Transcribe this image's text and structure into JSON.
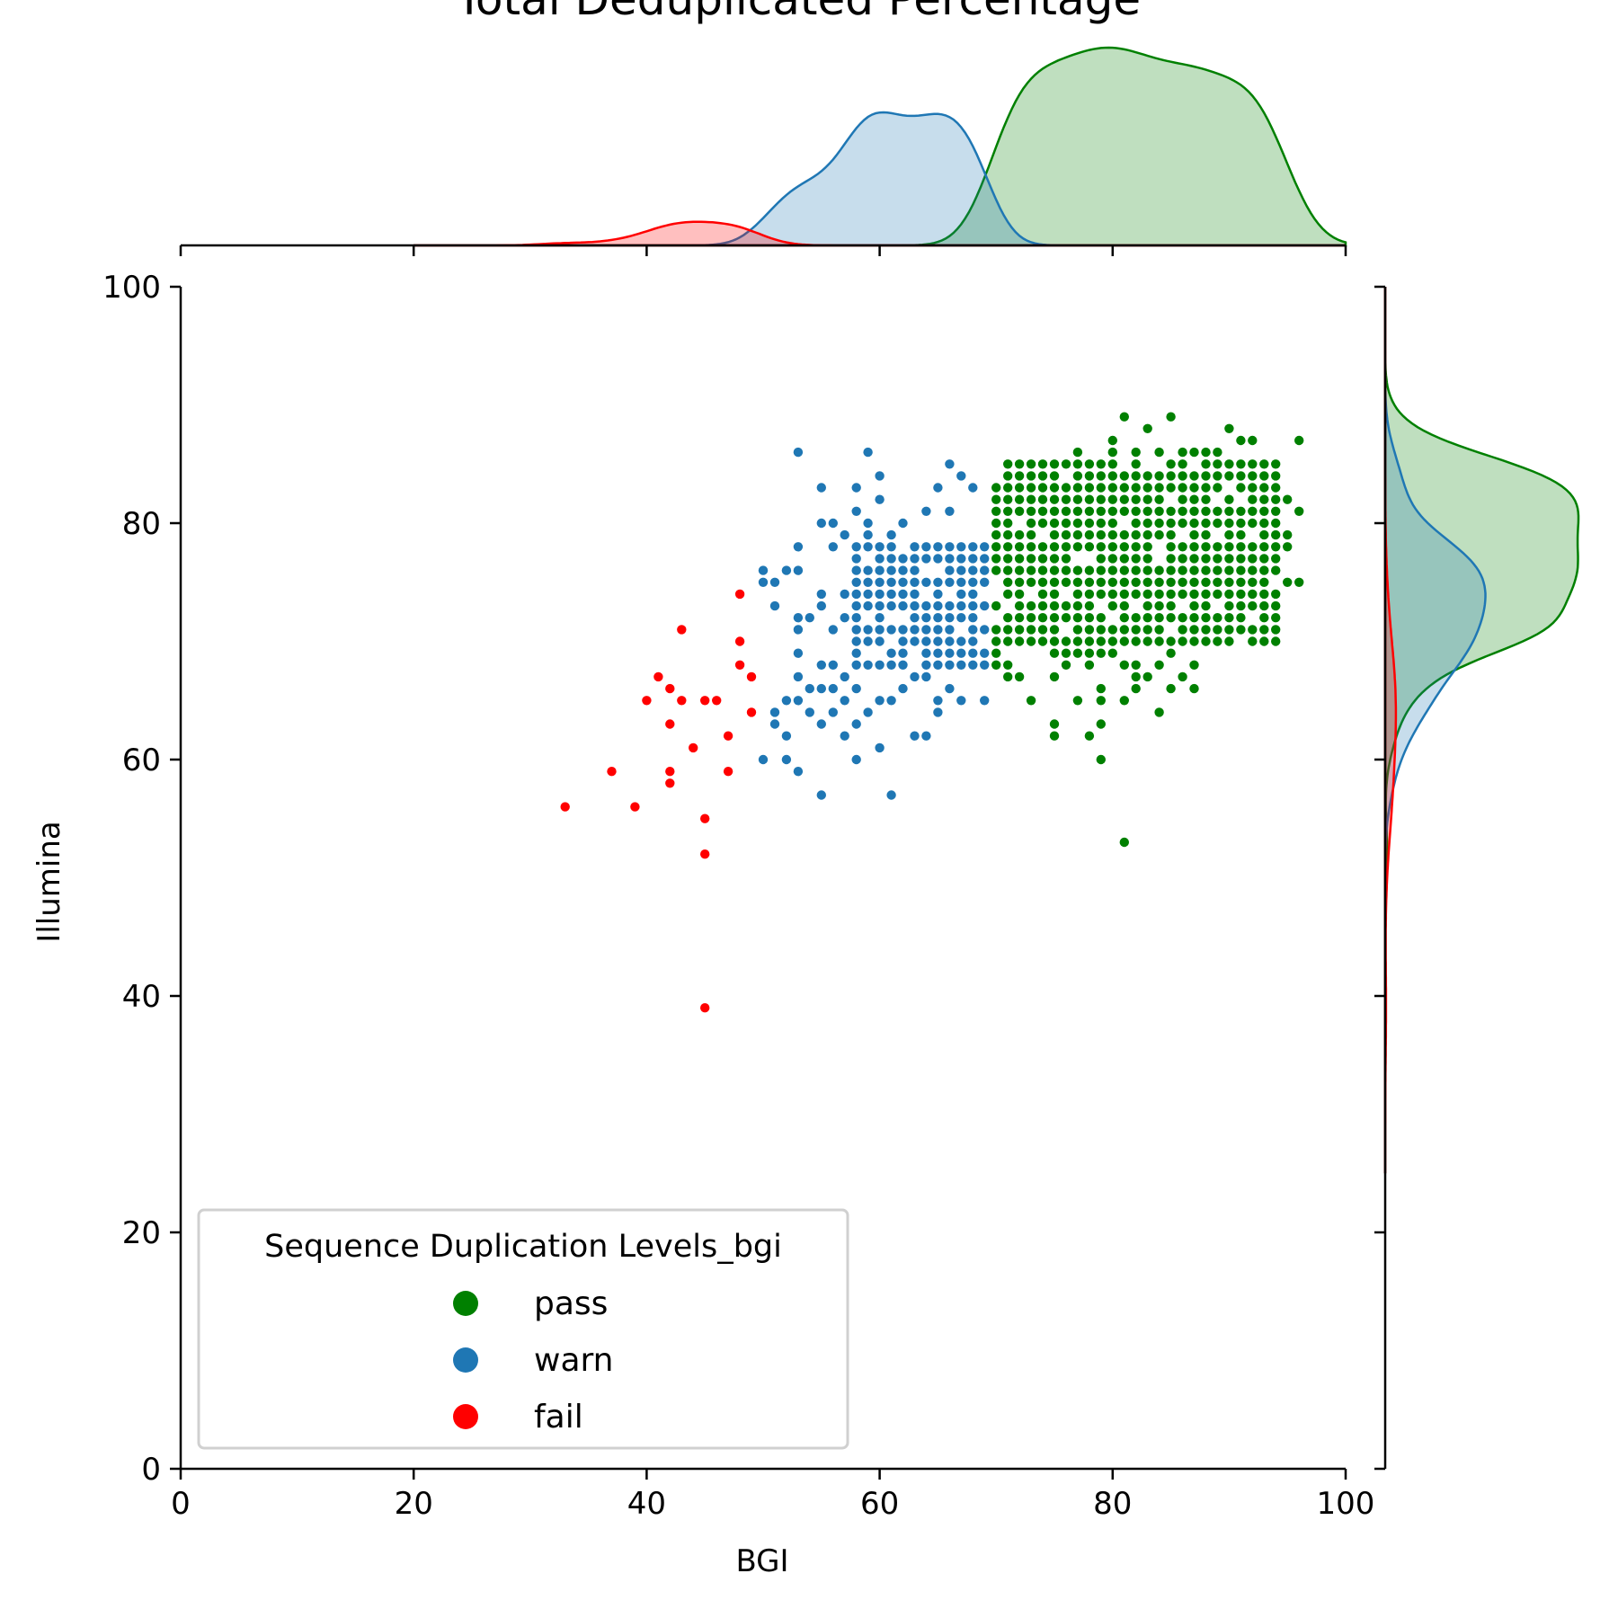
{
  "chart_data": {
    "type": "scatter",
    "title": "Total Deduplicated Percentage",
    "xlabel": "BGI",
    "ylabel": "Illumina",
    "xlim": [
      0,
      100
    ],
    "ylim": [
      0,
      100
    ],
    "xticks": [
      0,
      20,
      40,
      60,
      80,
      100
    ],
    "yticks": [
      0,
      20,
      40,
      60,
      80,
      100
    ],
    "grid": false,
    "legend": {
      "title": "Sequence Duplication Levels_bgi",
      "placement": "lower-left",
      "entries": [
        "pass",
        "warn",
        "fail"
      ]
    },
    "marginals": "kde",
    "series": [
      {
        "name": "pass",
        "color": "#008000",
        "points": [
          [
            81,
            89
          ],
          [
            85,
            89
          ],
          [
            83,
            88
          ],
          [
            90,
            88
          ],
          [
            80,
            87
          ],
          [
            96,
            87
          ],
          [
            91,
            87
          ],
          [
            92,
            87
          ],
          [
            77,
            86
          ],
          [
            80,
            86
          ],
          [
            82,
            86
          ],
          [
            84,
            86
          ],
          [
            86,
            86
          ],
          [
            87,
            86
          ],
          [
            88,
            86
          ],
          [
            89,
            86
          ],
          [
            72,
            84
          ],
          [
            73,
            84
          ],
          [
            79,
            84
          ],
          [
            80,
            84
          ],
          [
            81,
            84
          ],
          [
            83,
            84
          ],
          [
            94,
            84
          ],
          [
            86,
            85
          ],
          [
            71,
            83
          ],
          [
            74,
            83
          ],
          [
            76,
            83
          ],
          [
            78,
            83
          ],
          [
            84,
            83
          ],
          [
            93,
            83
          ],
          [
            95,
            82
          ],
          [
            96,
            81
          ],
          [
            95,
            79
          ],
          [
            95,
            78
          ],
          [
            94,
            77
          ],
          [
            95,
            75
          ],
          [
            96,
            75
          ],
          [
            94,
            76
          ],
          [
            93,
            76
          ],
          [
            92,
            76
          ],
          [
            92,
            74
          ],
          [
            91,
            74
          ],
          [
            90,
            74
          ],
          [
            90,
            73
          ],
          [
            92,
            73
          ],
          [
            88,
            72
          ],
          [
            89,
            72
          ],
          [
            89,
            71
          ],
          [
            87,
            70
          ],
          [
            86,
            70
          ],
          [
            88,
            70
          ],
          [
            85,
            69
          ],
          [
            84,
            68
          ],
          [
            87,
            68
          ],
          [
            86,
            67
          ],
          [
            82,
            66
          ],
          [
            85,
            66
          ],
          [
            87,
            66
          ],
          [
            84,
            64
          ],
          [
            81,
            65
          ],
          [
            79,
            65
          ],
          [
            79,
            66
          ],
          [
            77,
            65
          ],
          [
            75,
            67
          ],
          [
            72,
            67
          ],
          [
            71,
            67
          ],
          [
            73,
            65
          ],
          [
            75,
            63
          ],
          [
            75,
            62
          ],
          [
            78,
            62
          ],
          [
            79,
            63
          ],
          [
            79,
            60
          ],
          [
            81,
            53
          ],
          [
            81,
            68
          ],
          [
            82,
            68
          ],
          [
            82,
            67
          ],
          [
            83,
            67
          ],
          [
            76,
            68
          ],
          [
            78,
            68
          ],
          [
            74,
            70
          ],
          [
            73,
            70
          ],
          [
            75,
            69
          ],
          [
            76,
            69
          ],
          [
            77,
            69
          ],
          [
            78,
            69
          ],
          [
            79,
            69
          ],
          [
            80,
            69
          ],
          [
            71,
            68
          ],
          [
            70,
            68
          ],
          [
            70,
            69
          ],
          [
            70,
            70
          ],
          [
            70,
            71
          ],
          [
            71,
            72
          ],
          [
            72,
            72
          ],
          [
            70,
            73
          ],
          [
            71,
            74
          ],
          [
            70,
            76
          ],
          [
            70,
            77
          ],
          [
            70,
            78
          ],
          [
            70,
            79
          ],
          [
            70,
            80
          ],
          [
            70,
            81
          ],
          [
            70,
            82
          ],
          [
            70,
            83
          ]
        ],
        "grid_fill": {
          "x": [
            71,
            94
          ],
          "y": [
            70,
            85
          ],
          "step": 1,
          "density": 0.9
        }
      },
      {
        "name": "warn",
        "color": "#1f77b4",
        "points": [
          [
            53,
            86
          ],
          [
            59,
            86
          ],
          [
            66,
            85
          ],
          [
            60,
            84
          ],
          [
            67,
            84
          ],
          [
            55,
            83
          ],
          [
            58,
            83
          ],
          [
            65,
            83
          ],
          [
            68,
            83
          ],
          [
            60,
            82
          ],
          [
            58,
            81
          ],
          [
            64,
            81
          ],
          [
            66,
            81
          ],
          [
            55,
            80
          ],
          [
            56,
            80
          ],
          [
            59,
            80
          ],
          [
            62,
            80
          ],
          [
            57,
            79
          ],
          [
            59,
            79
          ],
          [
            61,
            79
          ],
          [
            53,
            78
          ],
          [
            56,
            78
          ],
          [
            61,
            78
          ],
          [
            50,
            76
          ],
          [
            52,
            76
          ],
          [
            53,
            76
          ],
          [
            50,
            75
          ],
          [
            51,
            75
          ],
          [
            55,
            74
          ],
          [
            57,
            74
          ],
          [
            51,
            73
          ],
          [
            55,
            73
          ],
          [
            53,
            72
          ],
          [
            54,
            72
          ],
          [
            57,
            72
          ],
          [
            53,
            71
          ],
          [
            56,
            71
          ],
          [
            53,
            69
          ],
          [
            55,
            68
          ],
          [
            53,
            67
          ],
          [
            56,
            68
          ],
          [
            57,
            67
          ],
          [
            54,
            66
          ],
          [
            55,
            66
          ],
          [
            56,
            66
          ],
          [
            58,
            66
          ],
          [
            52,
            65
          ],
          [
            53,
            65
          ],
          [
            57,
            65
          ],
          [
            51,
            64
          ],
          [
            54,
            64
          ],
          [
            56,
            64
          ],
          [
            59,
            64
          ],
          [
            51,
            63
          ],
          [
            55,
            63
          ],
          [
            58,
            63
          ],
          [
            52,
            62
          ],
          [
            57,
            62
          ],
          [
            63,
            62
          ],
          [
            64,
            62
          ],
          [
            50,
            60
          ],
          [
            52,
            60
          ],
          [
            58,
            60
          ],
          [
            53,
            59
          ],
          [
            55,
            57
          ],
          [
            61,
            57
          ],
          [
            60,
            61
          ],
          [
            60,
            65
          ],
          [
            61,
            65
          ],
          [
            62,
            66
          ],
          [
            65,
            65
          ],
          [
            67,
            65
          ],
          [
            69,
            65
          ],
          [
            65,
            64
          ],
          [
            66,
            66
          ],
          [
            63,
            67
          ],
          [
            64,
            67
          ]
        ],
        "grid_fill": {
          "x": [
            58,
            69
          ],
          "y": [
            68,
            78
          ],
          "step": 1,
          "density": 0.85
        }
      },
      {
        "name": "fail",
        "color": "#ff0000",
        "points": [
          [
            48,
            74
          ],
          [
            43,
            71
          ],
          [
            48,
            70
          ],
          [
            48,
            68
          ],
          [
            49,
            67
          ],
          [
            41,
            67
          ],
          [
            42,
            66
          ],
          [
            40,
            65
          ],
          [
            43,
            65
          ],
          [
            45,
            65
          ],
          [
            46,
            65
          ],
          [
            42,
            63
          ],
          [
            49,
            64
          ],
          [
            47,
            62
          ],
          [
            44,
            61
          ],
          [
            37,
            59
          ],
          [
            42,
            59
          ],
          [
            47,
            59
          ],
          [
            42,
            58
          ],
          [
            33,
            56
          ],
          [
            39,
            56
          ],
          [
            45,
            55
          ],
          [
            45,
            52
          ],
          [
            45,
            39
          ]
        ]
      }
    ]
  }
}
